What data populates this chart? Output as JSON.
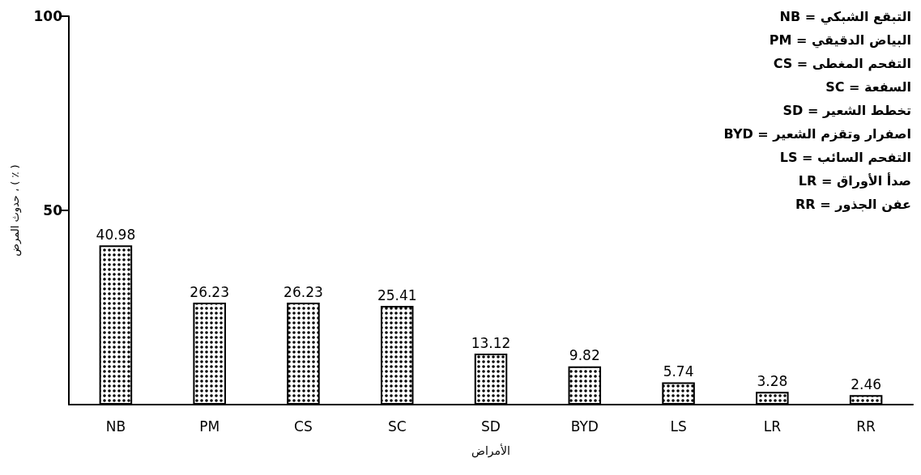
{
  "chart_data": {
    "type": "bar",
    "xlabel": "الأمراض",
    "ylabel": "حدوث المرض ، ( ٪ )",
    "categories": [
      "NB",
      "PM",
      "CS",
      "SC",
      "SD",
      "BYD",
      "LS",
      "LR",
      "RR"
    ],
    "values": [
      40.98,
      26.23,
      26.23,
      25.41,
      13.12,
      9.82,
      5.74,
      3.28,
      2.46
    ],
    "color": "#000000",
    "data_labels": true,
    "grid": false,
    "ylim": [
      0,
      100
    ],
    "yticks": [
      50,
      100
    ],
    "annotations": [
      "NB = التبقع الشبكي",
      "PM = البياض الدقيقي",
      "CS = التفحم المغطى",
      "SC = السفعة",
      "SD = تخطط الشعير",
      "BYD = اصفرار وتقزم الشعير",
      "LS = التفحم السائب",
      "LR = صدأ الأوراق",
      "RR = عفن الجذور"
    ]
  }
}
